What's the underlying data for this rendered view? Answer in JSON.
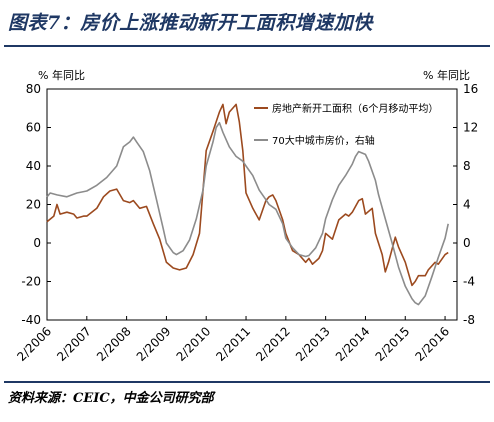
{
  "title": "图表7：房价上涨推动新开工面积增速加快",
  "source": "资料来源：CEIC，中金公司研究部",
  "chart_data": {
    "type": "line",
    "left_unit": "% 年同比",
    "right_unit": "% 年同比",
    "left_ylim": [
      -40,
      80
    ],
    "right_ylim": [
      -8,
      16
    ],
    "left_ticks": [
      -40,
      -20,
      0,
      20,
      40,
      60,
      80
    ],
    "right_ticks": [
      -8,
      -4,
      0,
      4,
      8,
      12,
      16
    ],
    "x_tick_labels": [
      "2/2006",
      "2/2007",
      "2/2008",
      "2/2009",
      "2/2010",
      "2/2011",
      "2/2012",
      "2/2013",
      "2/2014",
      "2/2015",
      "2/2016"
    ],
    "legend_position": "top-right",
    "grid": false,
    "series": [
      {
        "name": "房地产新开工面积（6个月移动平均）",
        "axis": "left",
        "color": "#9c4a1f",
        "points": [
          [
            2006.0,
            11
          ],
          [
            2006.17,
            14
          ],
          [
            2006.25,
            20
          ],
          [
            2006.33,
            15
          ],
          [
            2006.5,
            16
          ],
          [
            2006.67,
            15
          ],
          [
            2006.75,
            13
          ],
          [
            2006.92,
            14
          ],
          [
            2007.0,
            14
          ],
          [
            2007.25,
            18
          ],
          [
            2007.42,
            24
          ],
          [
            2007.58,
            27
          ],
          [
            2007.75,
            28
          ],
          [
            2007.92,
            22
          ],
          [
            2008.08,
            21
          ],
          [
            2008.17,
            22
          ],
          [
            2008.33,
            18
          ],
          [
            2008.5,
            19
          ],
          [
            2008.67,
            10
          ],
          [
            2008.83,
            2
          ],
          [
            2009.0,
            -10
          ],
          [
            2009.17,
            -13
          ],
          [
            2009.33,
            -14
          ],
          [
            2009.5,
            -13
          ],
          [
            2009.67,
            -6
          ],
          [
            2009.83,
            5
          ],
          [
            2010.0,
            48
          ],
          [
            2010.17,
            58
          ],
          [
            2010.33,
            68
          ],
          [
            2010.42,
            72
          ],
          [
            2010.5,
            62
          ],
          [
            2010.58,
            68
          ],
          [
            2010.75,
            72
          ],
          [
            2010.83,
            63
          ],
          [
            2010.92,
            48
          ],
          [
            2011.0,
            26
          ],
          [
            2011.17,
            18
          ],
          [
            2011.33,
            12
          ],
          [
            2011.5,
            22
          ],
          [
            2011.58,
            24
          ],
          [
            2011.67,
            25
          ],
          [
            2011.75,
            22
          ],
          [
            2011.92,
            12
          ],
          [
            2012.0,
            5
          ],
          [
            2012.17,
            -4
          ],
          [
            2012.33,
            -6
          ],
          [
            2012.5,
            -10
          ],
          [
            2012.58,
            -8
          ],
          [
            2012.67,
            -11
          ],
          [
            2012.83,
            -8
          ],
          [
            2012.92,
            -4
          ],
          [
            2013.0,
            5
          ],
          [
            2013.17,
            2
          ],
          [
            2013.33,
            12
          ],
          [
            2013.5,
            15
          ],
          [
            2013.58,
            14
          ],
          [
            2013.67,
            16
          ],
          [
            2013.83,
            22
          ],
          [
            2013.92,
            23
          ],
          [
            2014.0,
            15
          ],
          [
            2014.17,
            18
          ],
          [
            2014.25,
            5
          ],
          [
            2014.42,
            -6
          ],
          [
            2014.5,
            -15
          ],
          [
            2014.58,
            -10
          ],
          [
            2014.75,
            3
          ],
          [
            2014.83,
            -2
          ],
          [
            2015.0,
            -10
          ],
          [
            2015.17,
            -22
          ],
          [
            2015.25,
            -20
          ],
          [
            2015.33,
            -17
          ],
          [
            2015.5,
            -17
          ],
          [
            2015.58,
            -14
          ],
          [
            2015.75,
            -10
          ],
          [
            2015.83,
            -11
          ],
          [
            2016.0,
            -6
          ],
          [
            2016.08,
            -5
          ]
        ]
      },
      {
        "name": "70大中城市房价，右轴",
        "axis": "right",
        "color": "#8c8c8c",
        "points": [
          [
            2006.0,
            4.8
          ],
          [
            2006.08,
            5.2
          ],
          [
            2006.25,
            5.0
          ],
          [
            2006.5,
            4.8
          ],
          [
            2006.75,
            5.2
          ],
          [
            2007.0,
            5.4
          ],
          [
            2007.25,
            6.0
          ],
          [
            2007.5,
            6.8
          ],
          [
            2007.75,
            8.0
          ],
          [
            2007.92,
            10.0
          ],
          [
            2008.08,
            10.5
          ],
          [
            2008.17,
            11.0
          ],
          [
            2008.25,
            10.5
          ],
          [
            2008.42,
            9.5
          ],
          [
            2008.58,
            7.5
          ],
          [
            2008.75,
            4.5
          ],
          [
            2008.92,
            1.5
          ],
          [
            2009.0,
            0.0
          ],
          [
            2009.17,
            -1.0
          ],
          [
            2009.25,
            -1.2
          ],
          [
            2009.42,
            -0.8
          ],
          [
            2009.58,
            0.3
          ],
          [
            2009.75,
            2.5
          ],
          [
            2009.92,
            5.5
          ],
          [
            2010.0,
            8.0
          ],
          [
            2010.17,
            10.5
          ],
          [
            2010.25,
            12.0
          ],
          [
            2010.33,
            12.5
          ],
          [
            2010.42,
            11.5
          ],
          [
            2010.58,
            10.0
          ],
          [
            2010.75,
            9.0
          ],
          [
            2010.92,
            8.5
          ],
          [
            2011.0,
            8.0
          ],
          [
            2011.17,
            7.0
          ],
          [
            2011.33,
            5.5
          ],
          [
            2011.5,
            4.5
          ],
          [
            2011.58,
            4.0
          ],
          [
            2011.75,
            3.5
          ],
          [
            2011.92,
            2.0
          ],
          [
            2012.0,
            0.5
          ],
          [
            2012.17,
            -0.5
          ],
          [
            2012.33,
            -1.2
          ],
          [
            2012.5,
            -1.4
          ],
          [
            2012.58,
            -1.3
          ],
          [
            2012.75,
            -0.5
          ],
          [
            2012.92,
            1.0
          ],
          [
            2013.0,
            2.5
          ],
          [
            2013.17,
            4.5
          ],
          [
            2013.33,
            6.0
          ],
          [
            2013.5,
            7.0
          ],
          [
            2013.67,
            8.2
          ],
          [
            2013.75,
            9.0
          ],
          [
            2013.83,
            9.5
          ],
          [
            2014.0,
            9.2
          ],
          [
            2014.08,
            8.5
          ],
          [
            2014.25,
            6.5
          ],
          [
            2014.33,
            5.0
          ],
          [
            2014.5,
            2.5
          ],
          [
            2014.67,
            0.0
          ],
          [
            2014.83,
            -2.5
          ],
          [
            2015.0,
            -4.5
          ],
          [
            2015.17,
            -5.8
          ],
          [
            2015.25,
            -6.2
          ],
          [
            2015.33,
            -6.4
          ],
          [
            2015.5,
            -5.5
          ],
          [
            2015.67,
            -3.5
          ],
          [
            2015.83,
            -1.5
          ],
          [
            2016.0,
            0.5
          ],
          [
            2016.08,
            2.0
          ]
        ]
      }
    ]
  }
}
